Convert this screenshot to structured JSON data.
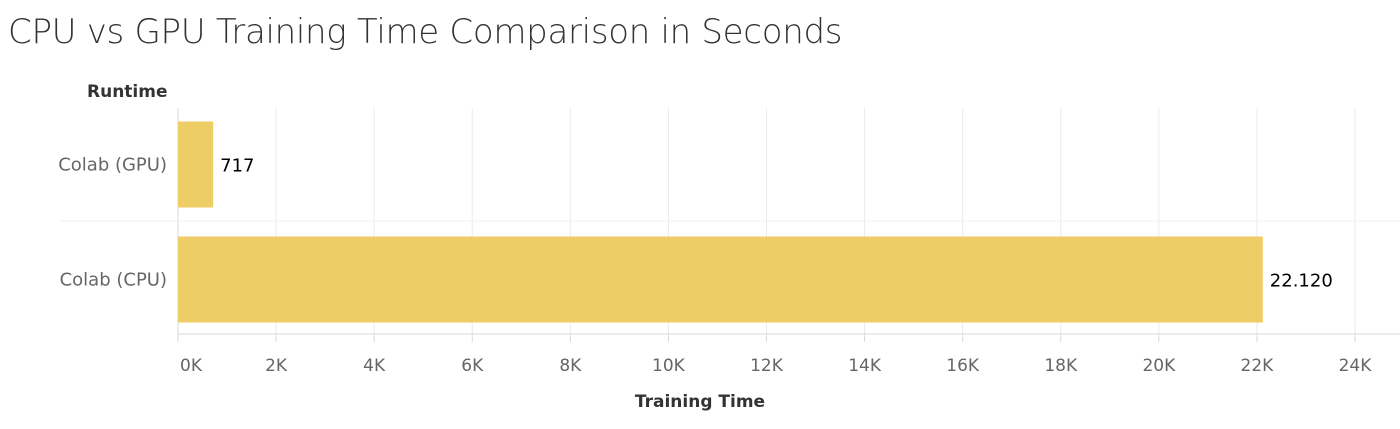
{
  "title": "CPU vs GPU Training Time Comparison in Seconds",
  "chart_data": {
    "type": "bar",
    "orientation": "horizontal",
    "title": "CPU vs GPU Training Time Comparison in Seconds",
    "ylabel": "Runtime",
    "xlabel": "Training Time",
    "categories": [
      "Colab (GPU)",
      "Colab (CPU)"
    ],
    "values": [
      717,
      22120
    ],
    "value_labels": [
      "717",
      "22.120"
    ],
    "xlim": [
      0,
      24000
    ],
    "ticks": [
      0,
      2000,
      4000,
      6000,
      8000,
      10000,
      12000,
      14000,
      16000,
      18000,
      20000,
      22000,
      24000
    ],
    "tick_labels": [
      "0K",
      "2K",
      "4K",
      "6K",
      "8K",
      "10K",
      "12K",
      "14K",
      "16K",
      "18K",
      "20K",
      "22K",
      "24K"
    ],
    "bar_color": "#EECC66",
    "grid": true,
    "legend": "none"
  }
}
